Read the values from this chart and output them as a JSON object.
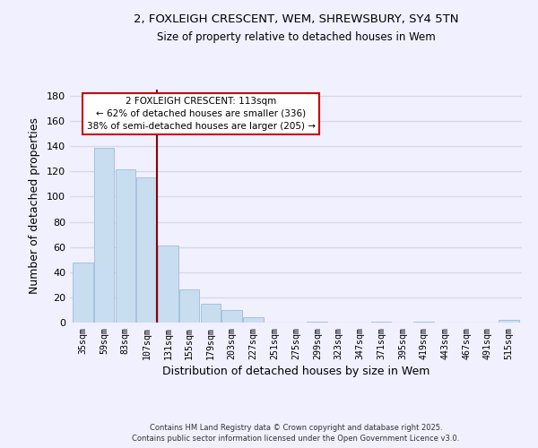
{
  "title_line1": "2, FOXLEIGH CRESCENT, WEM, SHREWSBURY, SY4 5TN",
  "title_line2": "Size of property relative to detached houses in Wem",
  "xlabel": "Distribution of detached houses by size in Wem",
  "ylabel": "Number of detached properties",
  "categories": [
    "35sqm",
    "59sqm",
    "83sqm",
    "107sqm",
    "131sqm",
    "155sqm",
    "179sqm",
    "203sqm",
    "227sqm",
    "251sqm",
    "275sqm",
    "299sqm",
    "323sqm",
    "347sqm",
    "371sqm",
    "395sqm",
    "419sqm",
    "443sqm",
    "467sqm",
    "491sqm",
    "515sqm"
  ],
  "values": [
    48,
    139,
    122,
    115,
    61,
    26,
    15,
    10,
    4,
    0,
    0,
    1,
    0,
    0,
    1,
    0,
    1,
    0,
    0,
    0,
    2
  ],
  "bar_color": "#c8ddf0",
  "bar_edge_color": "#a0bcd8",
  "vline_x": 3.5,
  "vline_color": "#8b0000",
  "ylim": [
    0,
    185
  ],
  "yticks": [
    0,
    20,
    40,
    60,
    80,
    100,
    120,
    140,
    160,
    180
  ],
  "annotation_title": "2 FOXLEIGH CRESCENT: 113sqm",
  "annotation_line2": "← 62% of detached houses are smaller (336)",
  "annotation_line3": "38% of semi-detached houses are larger (205) →",
  "footer_line1": "Contains HM Land Registry data © Crown copyright and database right 2025.",
  "footer_line2": "Contains public sector information licensed under the Open Government Licence v3.0.",
  "background_color": "#f0f0ff",
  "grid_color": "#d8d8e8"
}
